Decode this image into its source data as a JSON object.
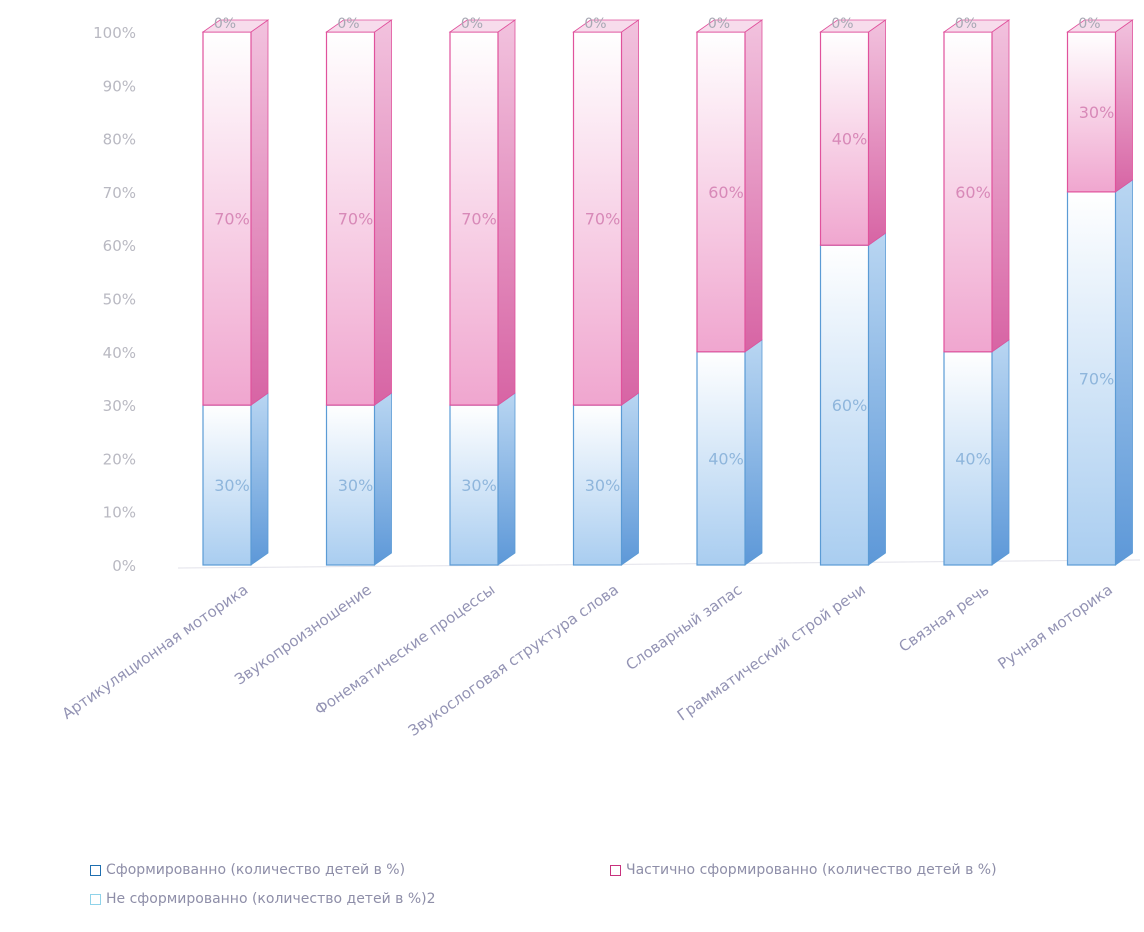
{
  "chart_data": {
    "type": "bar",
    "stacked": true,
    "percent": true,
    "three_d": true,
    "categories": [
      "Артикуляционная моторика",
      "Звукопроизношение",
      "Фонематические процессы",
      "Звукослоговая структура слова",
      "Словарный запас",
      "Грамматический строй речи",
      "Связная речь",
      "Ручная моторика"
    ],
    "series": [
      {
        "name": "Сформированно (количество детей в %)",
        "values": [
          30,
          30,
          30,
          30,
          40,
          60,
          40,
          70
        ],
        "labels": [
          "30%",
          "30%",
          "30%",
          "30%",
          "40%",
          "60%",
          "40%",
          "70%"
        ],
        "color": "#5b9bd5"
      },
      {
        "name": "Частично сформированно (количество детей в %)",
        "values": [
          70,
          70,
          70,
          70,
          60,
          40,
          60,
          30
        ],
        "labels": [
          "70%",
          "70%",
          "70%",
          "70%",
          "60%",
          "40%",
          "60%",
          "30%"
        ],
        "color": "#e0529c"
      },
      {
        "name": "Не сформированно (количество детей в %)2",
        "values": [
          0,
          0,
          0,
          0,
          0,
          0,
          0,
          0
        ],
        "labels": [
          "0%",
          "0%",
          "0%",
          "0%",
          "0%",
          "0%",
          "0%",
          "0%"
        ],
        "color": "#8fd3ea"
      }
    ],
    "y_ticks": [
      "0%",
      "10%",
      "20%",
      "30%",
      "40%",
      "50%",
      "60%",
      "70%",
      "80%",
      "90%",
      "100%"
    ],
    "ylim": [
      0,
      100
    ],
    "grid": false,
    "legend": "bottom"
  },
  "legend": [
    {
      "label": "Сформированно (количество детей в %)",
      "color": "#1f6fb0"
    },
    {
      "label": "Частично сформированно (количество детей в %)",
      "color": "#c8327e"
    },
    {
      "label": "Не сформированно (количество детей в %)2",
      "color": "#8fd3ea"
    }
  ]
}
